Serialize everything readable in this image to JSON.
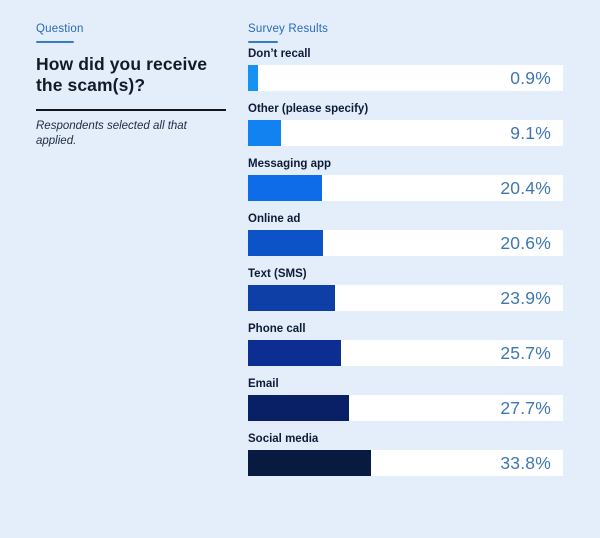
{
  "colors": {
    "background": "#e3eefa",
    "header_blue": "#2a6ab8",
    "underline_blue": "#3a7cc4",
    "title_dark": "#111a2b",
    "label_dark": "#0d1b38",
    "note_dark": "#1d2a42",
    "divider_dark": "#13161c",
    "track_white": "#ffffff",
    "value_blue": "#3f77b0"
  },
  "question_panel": {
    "eyebrow": "Question",
    "title": "How did you receive the scam(s)?",
    "note": "Respondents selected all that applied."
  },
  "results_panel": {
    "eyebrow": "Survey Results"
  },
  "chart_data": {
    "type": "bar",
    "orientation": "horizontal",
    "title": "How did you receive the scam(s)?",
    "categories": [
      "Don’t recall",
      "Other (please specify)",
      "Messaging app",
      "Online ad",
      "Text (SMS)",
      "Phone call",
      "Email",
      "Social media"
    ],
    "values": [
      0.9,
      9.1,
      20.4,
      20.6,
      23.9,
      25.7,
      27.7,
      33.8
    ],
    "value_labels": [
      "0.9%",
      "9.1%",
      "20.4%",
      "20.6%",
      "23.9%",
      "25.7%",
      "27.7%",
      "33.8%"
    ],
    "bar_colors": [
      "#1791f2",
      "#1282f0",
      "#0f6ce8",
      "#0c53c8",
      "#0d3fa6",
      "#0c2e92",
      "#0a2066",
      "#091a41"
    ],
    "xlim": [
      0,
      86.6
    ],
    "min_bar_pct": 3.2,
    "grid": false,
    "legend": false,
    "value_label_position": "inside-track-right"
  }
}
